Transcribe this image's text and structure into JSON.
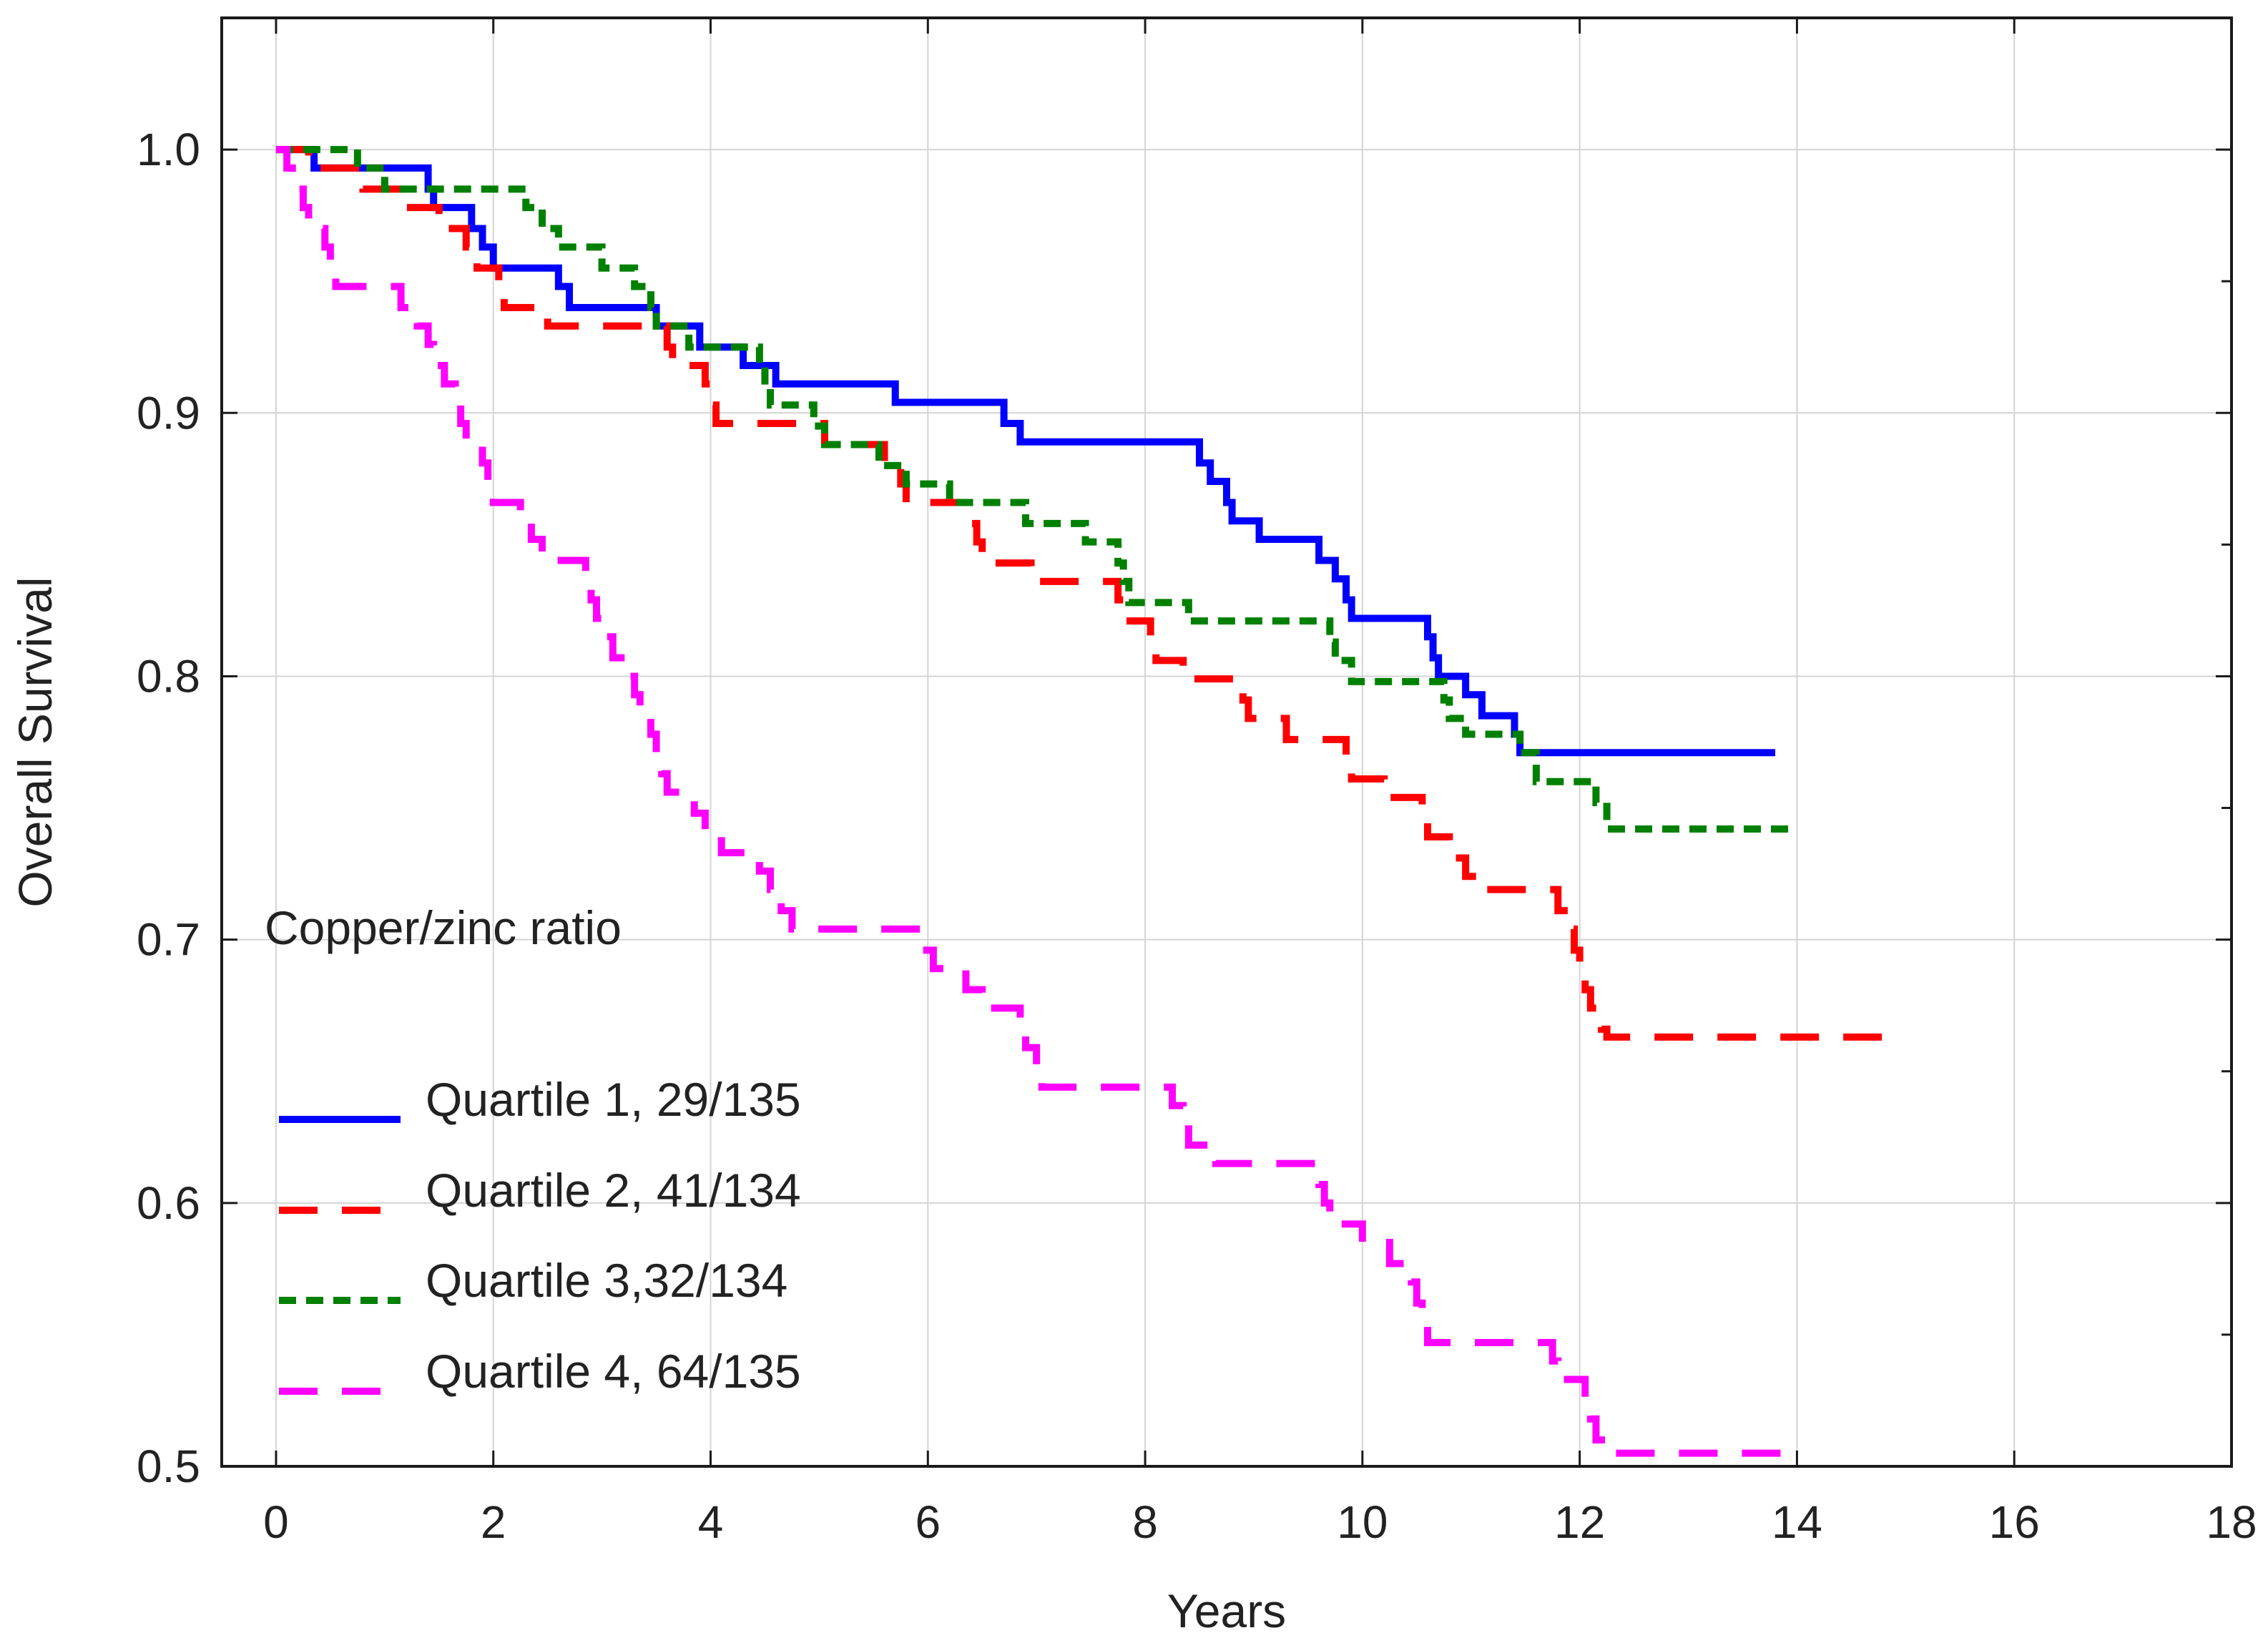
{
  "chart_data": {
    "type": "line",
    "subtype": "kaplan-meier step",
    "title": "",
    "xlabel": "Years",
    "ylabel": "Overall Survival",
    "xlim": [
      -0.5,
      18
    ],
    "ylim": [
      0.5,
      1.05
    ],
    "xticks": [
      "0",
      "2",
      "4",
      "6",
      "8",
      "10",
      "12",
      "14",
      "16",
      "18"
    ],
    "yticks": [
      "0.5",
      "0.6",
      "0.7",
      "0.8",
      "0.9",
      "1.0"
    ],
    "grid": true,
    "legend": {
      "title": "Copper/zinc ratio",
      "placement": "bottom-left"
    },
    "series": [
      {
        "name": "Quartile 1, 29/135",
        "color": "#0000ff",
        "dash": "solid",
        "points": [
          [
            0,
            1.0
          ],
          [
            0.35,
            0.993
          ],
          [
            1.4,
            0.985
          ],
          [
            1.45,
            0.978
          ],
          [
            1.8,
            0.97
          ],
          [
            1.9,
            0.963
          ],
          [
            2.0,
            0.955
          ],
          [
            2.6,
            0.948
          ],
          [
            2.7,
            0.94
          ],
          [
            3.5,
            0.933
          ],
          [
            3.9,
            0.925
          ],
          [
            4.3,
            0.918
          ],
          [
            4.6,
            0.911
          ],
          [
            5.7,
            0.904
          ],
          [
            6.7,
            0.896
          ],
          [
            6.85,
            0.889
          ],
          [
            8.5,
            0.881
          ],
          [
            8.6,
            0.874
          ],
          [
            8.75,
            0.866
          ],
          [
            8.8,
            0.859
          ],
          [
            9.05,
            0.852
          ],
          [
            9.6,
            0.844
          ],
          [
            9.75,
            0.837
          ],
          [
            9.85,
            0.829
          ],
          [
            9.9,
            0.822
          ],
          [
            10.6,
            0.815
          ],
          [
            10.65,
            0.807
          ],
          [
            10.7,
            0.8
          ],
          [
            10.95,
            0.793
          ],
          [
            11.1,
            0.785
          ],
          [
            11.4,
            0.778
          ],
          [
            11.45,
            0.771
          ],
          [
            13.8,
            0.771
          ]
        ]
      },
      {
        "name": "Quartile 2, 41/134",
        "color": "#ff0000",
        "dash": "long-dash",
        "points": [
          [
            0,
            1.0
          ],
          [
            0.3,
            0.993
          ],
          [
            0.8,
            0.985
          ],
          [
            1.2,
            0.978
          ],
          [
            1.5,
            0.97
          ],
          [
            1.75,
            0.963
          ],
          [
            1.85,
            0.955
          ],
          [
            2.05,
            0.948
          ],
          [
            2.1,
            0.94
          ],
          [
            2.5,
            0.933
          ],
          [
            3.6,
            0.925
          ],
          [
            3.65,
            0.918
          ],
          [
            3.95,
            0.911
          ],
          [
            4.0,
            0.903
          ],
          [
            4.05,
            0.896
          ],
          [
            5.05,
            0.888
          ],
          [
            5.6,
            0.881
          ],
          [
            5.75,
            0.873
          ],
          [
            5.8,
            0.866
          ],
          [
            6.4,
            0.858
          ],
          [
            6.45,
            0.851
          ],
          [
            6.5,
            0.843
          ],
          [
            6.95,
            0.836
          ],
          [
            7.75,
            0.829
          ],
          [
            7.8,
            0.821
          ],
          [
            8.05,
            0.813
          ],
          [
            8.1,
            0.806
          ],
          [
            8.35,
            0.799
          ],
          [
            8.9,
            0.791
          ],
          [
            8.95,
            0.784
          ],
          [
            9.3,
            0.776
          ],
          [
            9.85,
            0.769
          ],
          [
            9.9,
            0.761
          ],
          [
            10.2,
            0.754
          ],
          [
            10.55,
            0.746
          ],
          [
            10.6,
            0.739
          ],
          [
            10.8,
            0.731
          ],
          [
            10.95,
            0.724
          ],
          [
            11.05,
            0.719
          ],
          [
            11.8,
            0.711
          ],
          [
            11.9,
            0.704
          ],
          [
            11.95,
            0.696
          ],
          [
            12.0,
            0.689
          ],
          [
            12.05,
            0.681
          ],
          [
            12.1,
            0.674
          ],
          [
            12.2,
            0.666
          ],
          [
            12.25,
            0.663
          ],
          [
            14.8,
            0.663
          ]
        ]
      },
      {
        "name": "Quartile 3,32/134",
        "color": "#008000",
        "dash": "short-dash",
        "points": [
          [
            0,
            1.0
          ],
          [
            0.75,
            0.993
          ],
          [
            1.0,
            0.985
          ],
          [
            2.3,
            0.978
          ],
          [
            2.45,
            0.97
          ],
          [
            2.6,
            0.963
          ],
          [
            3.0,
            0.955
          ],
          [
            3.3,
            0.948
          ],
          [
            3.45,
            0.94
          ],
          [
            3.5,
            0.933
          ],
          [
            3.8,
            0.925
          ],
          [
            4.45,
            0.918
          ],
          [
            4.5,
            0.91
          ],
          [
            4.55,
            0.903
          ],
          [
            4.95,
            0.895
          ],
          [
            5.05,
            0.888
          ],
          [
            5.55,
            0.88
          ],
          [
            5.8,
            0.873
          ],
          [
            6.2,
            0.866
          ],
          [
            6.9,
            0.858
          ],
          [
            7.45,
            0.851
          ],
          [
            7.75,
            0.843
          ],
          [
            7.8,
            0.836
          ],
          [
            7.85,
            0.828
          ],
          [
            8.4,
            0.821
          ],
          [
            9.7,
            0.813
          ],
          [
            9.75,
            0.806
          ],
          [
            9.9,
            0.798
          ],
          [
            10.75,
            0.791
          ],
          [
            10.8,
            0.784
          ],
          [
            10.95,
            0.778
          ],
          [
            11.45,
            0.771
          ],
          [
            11.6,
            0.76
          ],
          [
            12.15,
            0.752
          ],
          [
            12.25,
            0.742
          ],
          [
            13.95,
            0.742
          ]
        ]
      },
      {
        "name": "Quartile 4, 64/135",
        "color": "#ff00ff",
        "dash": "long-dash",
        "points": [
          [
            0,
            1.0
          ],
          [
            0.1,
            0.993
          ],
          [
            0.15,
            0.985
          ],
          [
            0.25,
            0.978
          ],
          [
            0.3,
            0.97
          ],
          [
            0.45,
            0.963
          ],
          [
            0.5,
            0.955
          ],
          [
            0.55,
            0.948
          ],
          [
            1.15,
            0.94
          ],
          [
            1.3,
            0.933
          ],
          [
            1.4,
            0.926
          ],
          [
            1.45,
            0.918
          ],
          [
            1.55,
            0.911
          ],
          [
            1.65,
            0.903
          ],
          [
            1.7,
            0.896
          ],
          [
            1.75,
            0.889
          ],
          [
            1.9,
            0.881
          ],
          [
            1.95,
            0.874
          ],
          [
            2.0,
            0.866
          ],
          [
            2.25,
            0.859
          ],
          [
            2.35,
            0.852
          ],
          [
            2.45,
            0.844
          ],
          [
            2.85,
            0.837
          ],
          [
            2.9,
            0.829
          ],
          [
            2.95,
            0.822
          ],
          [
            3.0,
            0.815
          ],
          [
            3.1,
            0.807
          ],
          [
            3.25,
            0.8
          ],
          [
            3.3,
            0.793
          ],
          [
            3.35,
            0.785
          ],
          [
            3.45,
            0.778
          ],
          [
            3.5,
            0.77
          ],
          [
            3.55,
            0.763
          ],
          [
            3.6,
            0.756
          ],
          [
            3.85,
            0.748
          ],
          [
            3.95,
            0.741
          ],
          [
            4.1,
            0.733
          ],
          [
            4.45,
            0.726
          ],
          [
            4.55,
            0.719
          ],
          [
            4.65,
            0.711
          ],
          [
            4.75,
            0.704
          ],
          [
            5.95,
            0.696
          ],
          [
            6.05,
            0.689
          ],
          [
            6.35,
            0.681
          ],
          [
            6.5,
            0.674
          ],
          [
            6.85,
            0.667
          ],
          [
            6.9,
            0.659
          ],
          [
            7.0,
            0.652
          ],
          [
            7.05,
            0.644
          ],
          [
            8.25,
            0.637
          ],
          [
            8.35,
            0.63
          ],
          [
            8.4,
            0.622
          ],
          [
            8.65,
            0.615
          ],
          [
            9.6,
            0.607
          ],
          [
            9.65,
            0.6
          ],
          [
            9.7,
            0.592
          ],
          [
            10.0,
            0.585
          ],
          [
            10.25,
            0.577
          ],
          [
            10.45,
            0.57
          ],
          [
            10.5,
            0.562
          ],
          [
            10.55,
            0.555
          ],
          [
            10.6,
            0.547
          ],
          [
            11.75,
            0.54
          ],
          [
            11.8,
            0.533
          ],
          [
            12.05,
            0.525
          ],
          [
            12.1,
            0.518
          ],
          [
            12.15,
            0.51
          ],
          [
            12.2,
            0.505
          ],
          [
            13.95,
            0.505
          ]
        ]
      }
    ]
  }
}
